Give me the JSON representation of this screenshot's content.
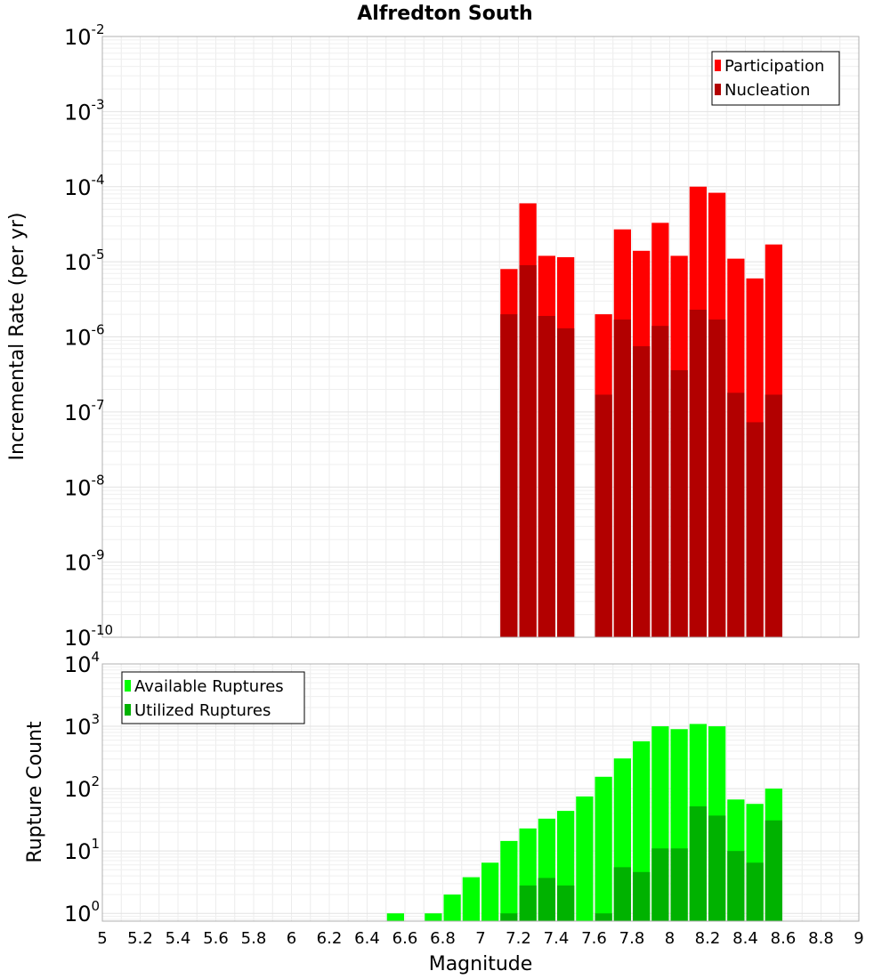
{
  "chart_data": [
    {
      "type": "bar",
      "title": "Alfredton South",
      "ylabel": "Incremental Rate (per yr)",
      "xlabel": "",
      "xlim": [
        5,
        9
      ],
      "y_scale": "log",
      "ylim": [
        1e-10,
        0.01
      ],
      "y_tick_exponents": [
        "-10",
        "-9",
        "-8",
        "-7",
        "-6",
        "-5",
        "-4",
        "-3",
        "-2"
      ],
      "legend_position": "top-right",
      "bin_width": 0.1,
      "x": [
        7.15,
        7.25,
        7.35,
        7.45,
        7.65,
        7.75,
        7.85,
        7.95,
        8.05,
        8.15,
        8.25,
        8.35,
        8.45,
        8.55
      ],
      "series": [
        {
          "name": "Participation",
          "color": "#ff0000",
          "values": [
            8e-06,
            6e-05,
            1.2e-05,
            1.15e-05,
            2e-06,
            2.7e-05,
            1.4e-05,
            3.3e-05,
            1.2e-05,
            0.0001,
            8.3e-05,
            1.1e-05,
            6e-06,
            1.7e-05
          ]
        },
        {
          "name": "Nucleation",
          "color": "#b20000",
          "values": [
            2e-06,
            9e-06,
            1.9e-06,
            1.3e-06,
            1.7e-07,
            1.7e-06,
            7.5e-07,
            1.4e-06,
            3.6e-07,
            2.3e-06,
            1.7e-06,
            1.8e-07,
            7.3e-08,
            1.7e-07
          ]
        }
      ]
    },
    {
      "type": "bar",
      "title": "",
      "ylabel": "Rupture Count",
      "xlabel": "Magnitude",
      "xlim": [
        5,
        9
      ],
      "y_scale": "log",
      "ylim": [
        0.75,
        10000
      ],
      "y_tick_exponents": [
        "0",
        "1",
        "2",
        "3",
        "4"
      ],
      "x_ticks": [
        "5",
        "5.2",
        "5.4",
        "5.6",
        "5.8",
        "6",
        "6.2",
        "6.4",
        "6.6",
        "6.8",
        "7",
        "7.2",
        "7.4",
        "7.6",
        "7.8",
        "8",
        "8.2",
        "8.4",
        "8.6",
        "8.8",
        "9"
      ],
      "legend_position": "top-left",
      "bin_width": 0.1,
      "x": [
        6.55,
        6.75,
        6.85,
        6.95,
        7.05,
        7.15,
        7.25,
        7.35,
        7.45,
        7.55,
        7.65,
        7.75,
        7.85,
        7.95,
        8.05,
        8.15,
        8.25,
        8.35,
        8.45,
        8.55
      ],
      "series": [
        {
          "name": "Available Ruptures",
          "color": "#00ff00",
          "values": [
            1,
            1,
            2,
            3.8,
            6.5,
            14.5,
            23,
            33,
            44,
            75,
            155,
            305,
            575,
            1000,
            900,
            1090,
            1000,
            67,
            57,
            100
          ]
        },
        {
          "name": "Utilized Ruptures",
          "color": "#00b200",
          "values": [
            0,
            0,
            0,
            0,
            0,
            1,
            2.8,
            3.7,
            2.8,
            0,
            1,
            5.5,
            4.6,
            11,
            11,
            52,
            37,
            10,
            6.5,
            31
          ]
        }
      ]
    }
  ]
}
